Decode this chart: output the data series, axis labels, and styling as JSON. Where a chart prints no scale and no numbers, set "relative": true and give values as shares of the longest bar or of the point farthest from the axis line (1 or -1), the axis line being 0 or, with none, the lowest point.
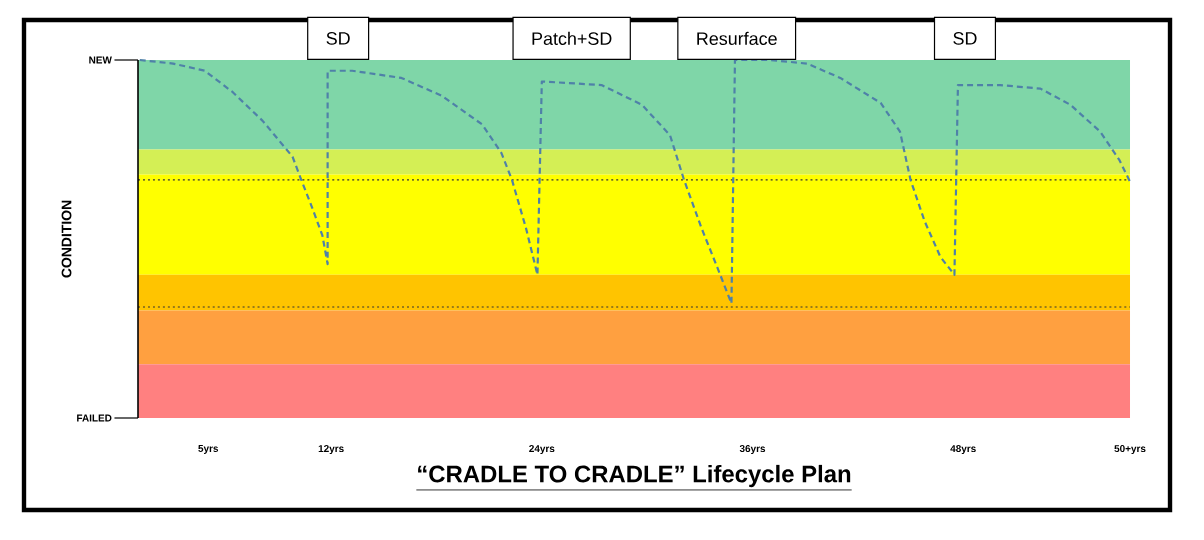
{
  "chart_data": {
    "type": "line",
    "title": "“CRADLE TO CRADLE” Lifecycle Plan",
    "ylabel": "CONDITION",
    "xlim": [
      1,
      57.5
    ],
    "xticks": [
      {
        "value": 5,
        "label": "5yrs"
      },
      {
        "value": 12,
        "label": "12yrs"
      },
      {
        "value": 24,
        "label": "24yrs"
      },
      {
        "value": 36,
        "label": "36yrs"
      },
      {
        "value": 48,
        "label": "48yrs"
      },
      {
        "value": 57.5,
        "label": "50+yrs"
      }
    ],
    "relative": true,
    "marker": "none",
    "line_style": "dashed",
    "series": [
      {
        "color": "#4f81a8",
        "x": [
          1.1,
          3,
          4.8,
          6.4,
          8.1,
          9.8,
          10.3,
          10.9,
          11.5,
          11.8,
          11.8,
          13.2,
          16.0,
          18.3,
          20.6,
          21.7,
          22.3,
          23.1,
          23.75,
          24.0,
          27.4,
          29.7,
          31.3,
          32.1,
          33.1,
          34.0,
          34.8,
          35.0,
          37.0,
          39.1,
          41.0,
          43.3,
          44.4,
          45.0,
          45.8,
          46.7,
          47.5,
          47.7,
          50.1,
          52.4,
          54.1,
          55.8,
          56.9,
          57.5
        ],
        "values": [
          1.0,
          0.99,
          0.97,
          0.91,
          0.83,
          0.73,
          0.665,
          0.59,
          0.51,
          0.43,
          0.97,
          0.97,
          0.95,
          0.9,
          0.82,
          0.74,
          0.665,
          0.53,
          0.4,
          0.94,
          0.93,
          0.875,
          0.79,
          0.665,
          0.53,
          0.42,
          0.32,
          1.0,
          1.0,
          0.99,
          0.95,
          0.88,
          0.8,
          0.665,
          0.55,
          0.45,
          0.4,
          0.93,
          0.93,
          0.92,
          0.875,
          0.8,
          0.72,
          0.66
        ]
      }
    ],
    "bands": [
      {
        "axis": "y",
        "from": 0.75,
        "to": 1.0,
        "color": "#7fd6a8"
      },
      {
        "axis": "y",
        "from": 0.68,
        "to": 0.75,
        "color": "#d4ef55"
      },
      {
        "axis": "y",
        "from": 0.4,
        "to": 0.68,
        "color": "#ffff00"
      },
      {
        "axis": "y",
        "from": 0.3,
        "to": 0.4,
        "color": "#ffc400"
      },
      {
        "axis": "y",
        "from": 0.15,
        "to": 0.3,
        "color": "#ffa040"
      },
      {
        "axis": "y",
        "from": 0,
        "to": 0.15,
        "color": "#ff8080"
      }
    ],
    "ref_lines": [
      {
        "axis": "y",
        "value": 0.665,
        "color": "#333333",
        "line_style": "dotted"
      },
      {
        "axis": "y",
        "value": 0.31,
        "color": "#333333",
        "line_style": "dotted"
      }
    ],
    "annotations": [
      "NEW",
      "FAILED",
      {
        "text": "SD",
        "x": 12.4,
        "y": 1.0
      },
      {
        "text": "Patch+SD",
        "x": 25.7,
        "y": 1.0
      },
      {
        "text": "Resurface",
        "x": 35.1,
        "y": 1.0
      },
      {
        "text": "SD",
        "x": 48.1,
        "y": 1.0
      }
    ]
  }
}
